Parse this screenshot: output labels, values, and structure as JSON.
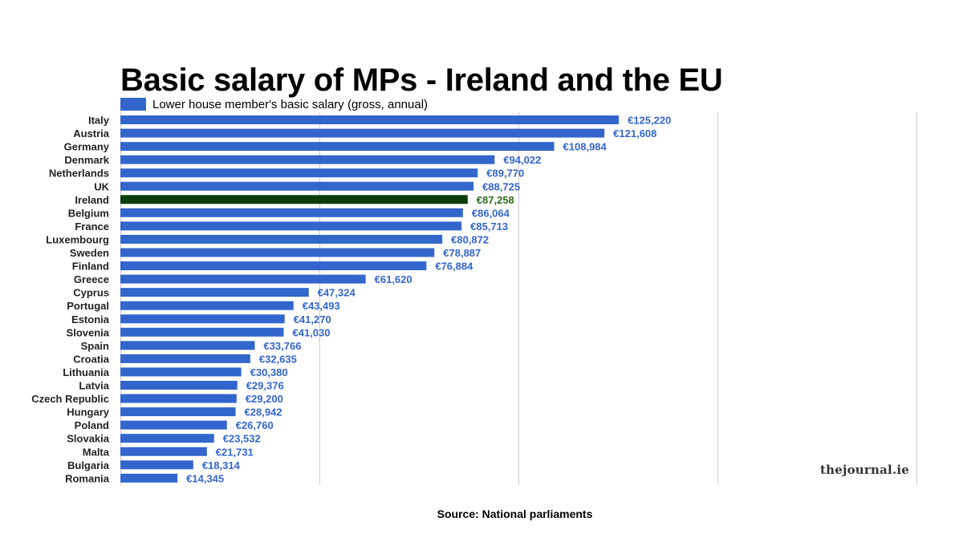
{
  "chart_data": {
    "type": "bar",
    "orientation": "horizontal",
    "title": "Basic salary of MPs - Ireland and the EU",
    "legend": {
      "label": "Lower house member's basic salary (gross, annual)",
      "position": "top-left"
    },
    "categories": [
      "Italy",
      "Austria",
      "Germany",
      "Denmark",
      "Netherlands",
      "UK",
      "Ireland",
      "Belgium",
      "France",
      "Luxembourg",
      "Sweden",
      "Finland",
      "Greece",
      "Cyprus",
      "Portugal",
      "Estonia",
      "Slovenia",
      "Spain",
      "Croatia",
      "Lithuania",
      "Latvia",
      "Czech Republic",
      "Hungary",
      "Poland",
      "Slovakia",
      "Malta",
      "Bulgaria",
      "Romania"
    ],
    "series": [
      {
        "name": "Lower house member's basic salary (gross, annual)",
        "values": [
          125220,
          121608,
          108984,
          94022,
          89770,
          88725,
          87258,
          86064,
          85713,
          80872,
          78887,
          76884,
          61620,
          47324,
          43493,
          41270,
          41030,
          33766,
          32635,
          30380,
          29376,
          29200,
          28942,
          26760,
          23532,
          21731,
          18314,
          14345
        ],
        "labels": [
          "€125,220",
          "€121,608",
          "€108,984",
          "€94,022",
          "€89,770",
          "€88,725",
          "€87,258",
          "€86,064",
          "€85,713",
          "€80,872",
          "€78,887",
          "€76,884",
          "€61,620",
          "€47,324",
          "€43,493",
          "€41,270",
          "€41,030",
          "€33,766",
          "€32,635",
          "€30,380",
          "€29,376",
          "€29,200",
          "€28,942",
          "€26,760",
          "€23,532",
          "€21,731",
          "€18,314",
          "€14,345"
        ]
      }
    ],
    "highlight_category": "Ireland",
    "xlim": [
      0,
      200000
    ],
    "gridlines": [
      0,
      50000,
      100000,
      150000,
      200000
    ],
    "grid": true
  },
  "colors": {
    "bar": "#3366cc",
    "highlight": "#0c3d0c",
    "label": "#3366cc",
    "highlight_label": "#2e6b1a",
    "grid": "#cccccc"
  },
  "source": "Source: National parliaments",
  "brand": "thejournal.ie"
}
